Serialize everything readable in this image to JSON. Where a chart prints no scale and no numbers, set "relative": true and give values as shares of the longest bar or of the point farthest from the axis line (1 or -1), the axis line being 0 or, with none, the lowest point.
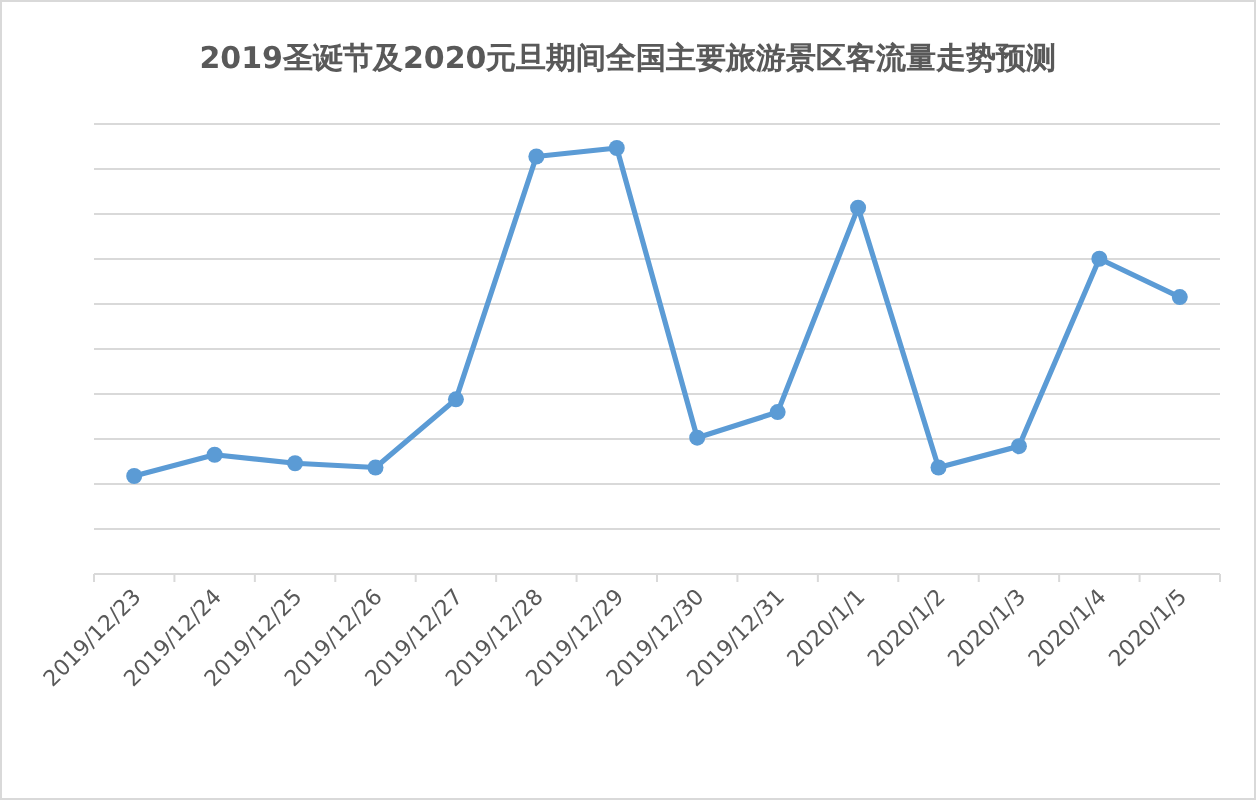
{
  "chart_data": {
    "type": "line",
    "title": "2019圣诞节及2020元旦期间全国主要旅游景区客流量走势预测",
    "categories": [
      "2019/12/23",
      "2019/12/24",
      "2019/12/25",
      "2019/12/26",
      "2019/12/27",
      "2019/12/28",
      "2019/12/29",
      "2019/12/30",
      "2019/12/31",
      "2020/1/1",
      "2020/1/2",
      "2020/1/3",
      "2020/1/4",
      "2020/1/5"
    ],
    "series": [
      {
        "color": "#5b9bd5",
        "values": [
          0.23,
          0.28,
          0.26,
          0.25,
          0.41,
          0.98,
          1,
          0.32,
          0.38,
          0.86,
          0.25,
          0.3,
          0.74,
          0.65
        ]
      }
    ],
    "relative": true,
    "grid": true,
    "marker": "circle",
    "line_style": "solid"
  }
}
